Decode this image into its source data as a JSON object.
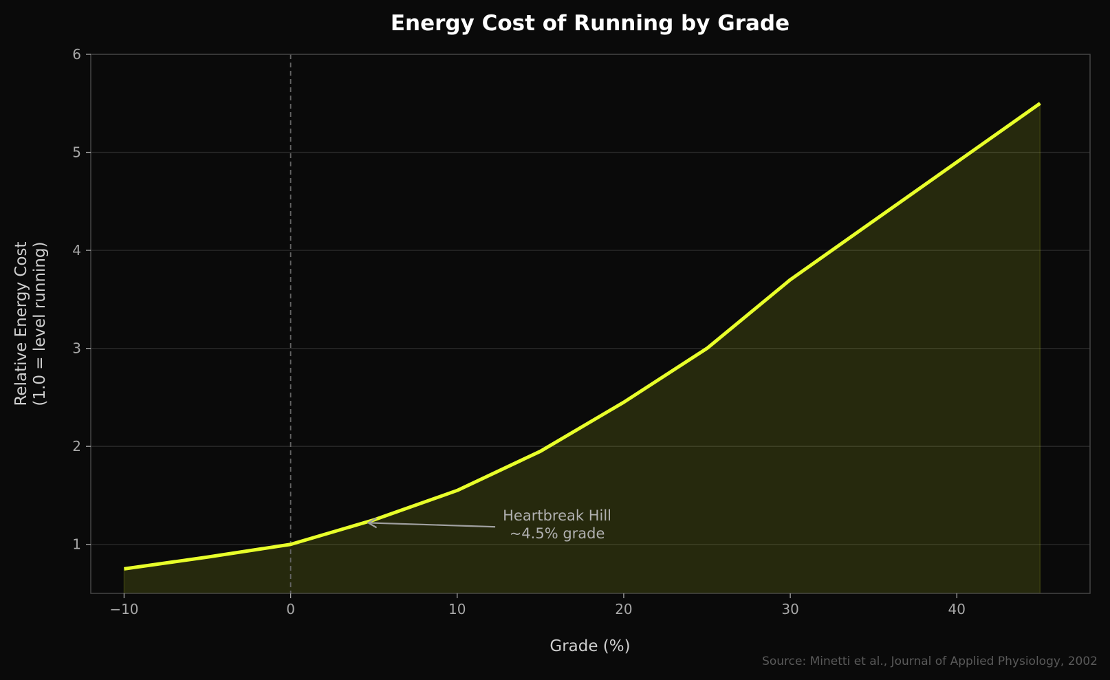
{
  "chart_data": {
    "type": "area",
    "title": "Energy Cost of Running by Grade",
    "xlabel": "Grade (%)",
    "ylabel_lines": [
      "Relative Energy Cost",
      "(1.0 = level running)"
    ],
    "xlim": [
      -12,
      48
    ],
    "ylim": [
      0.5,
      6
    ],
    "xticks": [
      -10,
      0,
      10,
      20,
      30,
      40
    ],
    "xtick_labels": [
      "−10",
      "0",
      "10",
      "20",
      "30",
      "40"
    ],
    "yticks": [
      1,
      2,
      3,
      4,
      5,
      6
    ],
    "ytick_labels": [
      "1",
      "2",
      "3",
      "4",
      "5",
      "6"
    ],
    "grid": "horizontal",
    "x": [
      -10,
      -5,
      0,
      5,
      10,
      15,
      20,
      25,
      30,
      35,
      40,
      45
    ],
    "y": [
      0.75,
      0.87,
      1.0,
      1.25,
      1.55,
      1.95,
      2.45,
      3.0,
      3.7,
      4.3,
      4.9,
      5.5
    ],
    "reference_line_x": 0,
    "annotation": {
      "lines": [
        "Heartbreak Hill",
        "~4.5% grade"
      ],
      "point": [
        4.5,
        1.22
      ],
      "text_at": [
        16,
        1.2
      ]
    },
    "source": "Source: Minetti et al., Journal of Applied Physiology, 2002",
    "colors": {
      "line": "#e8ff2a",
      "fill": "#e8ff2a",
      "background": "#0a0a0a",
      "grid": "#2a2a2a",
      "axes": "#444444"
    }
  }
}
